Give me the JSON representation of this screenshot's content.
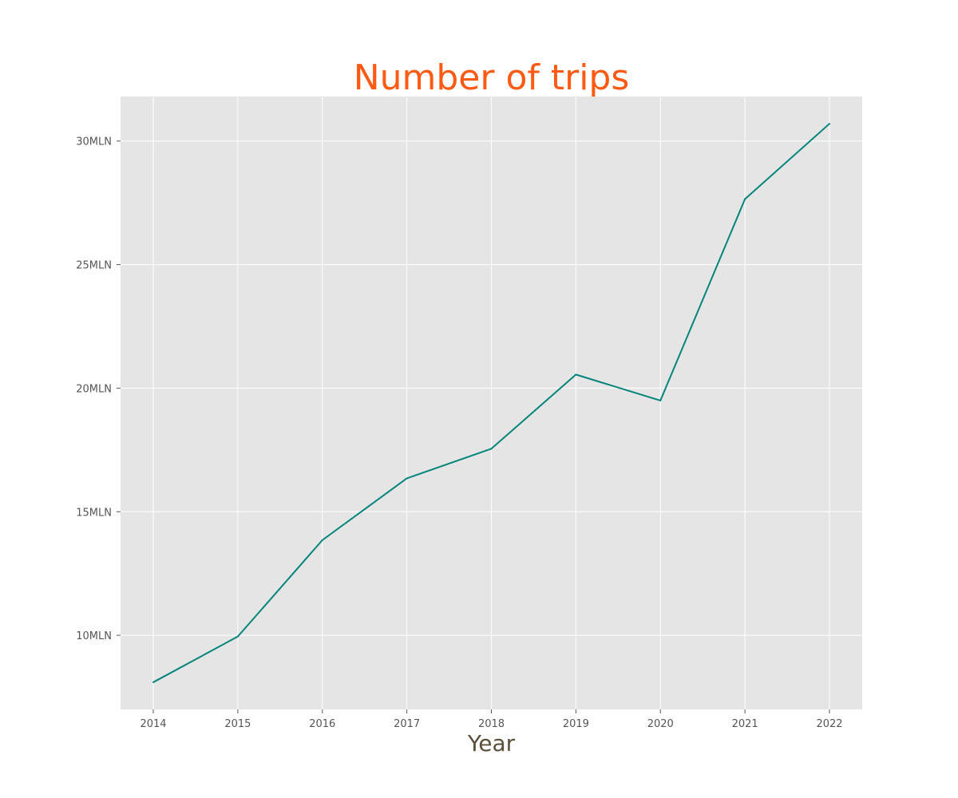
{
  "chart_data": {
    "type": "line",
    "title": "Number of trips",
    "xlabel": "Year",
    "ylabel": "",
    "x": [
      "2014",
      "2015",
      "2016",
      "2017",
      "2018",
      "2019",
      "2020",
      "2021",
      "2022"
    ],
    "series": [
      {
        "values": [
          8.1,
          9.95,
          13.85,
          16.35,
          17.55,
          20.55,
          19.5,
          27.65,
          30.7
        ]
      }
    ],
    "y_ticks": [
      {
        "value": 10,
        "label": "10MLN"
      },
      {
        "value": 15,
        "label": "15MLN"
      },
      {
        "value": 20,
        "label": "20MLN"
      },
      {
        "value": 25,
        "label": "25MLN"
      },
      {
        "value": 30,
        "label": "30MLN"
      }
    ],
    "ylim": [
      7.0,
      31.8
    ],
    "grid": true,
    "legend": "none"
  },
  "colors": {
    "title": "#ff5a14",
    "xlabel": "#5c4f3a",
    "line": "#00857a",
    "plot_background": "#e5e5e5",
    "grid": "#ffffff"
  }
}
